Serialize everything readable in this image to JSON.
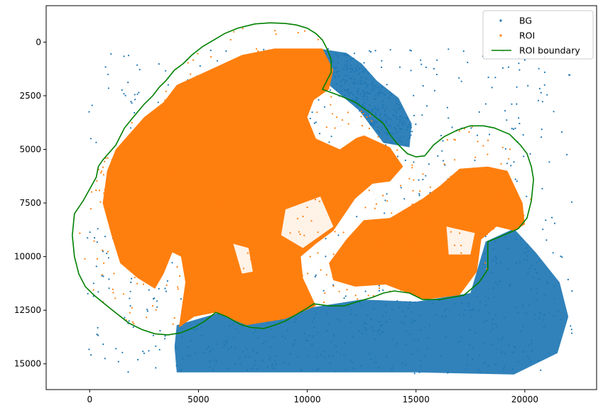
{
  "chart_data": {
    "type": "scatter",
    "xlim": [
      -2000,
      23300
    ],
    "ylim": [
      16200,
      -1700
    ],
    "y_inverted": true,
    "x_ticks": [
      0,
      5000,
      10000,
      15000,
      20000
    ],
    "x_tick_labels": [
      "0",
      "5000",
      "10000",
      "15000",
      "20000"
    ],
    "y_ticks": [
      0,
      2500,
      5000,
      7500,
      10000,
      12500,
      15000
    ],
    "y_tick_labels": [
      "0",
      "2500",
      "5000",
      "7500",
      "10000",
      "12500",
      "15000"
    ],
    "grid": false,
    "legend": {
      "placement": "top-right",
      "entries": [
        {
          "label": "BG",
          "kind": "marker",
          "color": "#1f77b4"
        },
        {
          "label": "ROI",
          "kind": "marker",
          "color": "#ff7f0e"
        },
        {
          "label": "ROI boundary",
          "kind": "line",
          "color": "#008000"
        }
      ]
    },
    "series": [
      {
        "name": "BG",
        "kind": "scatter",
        "color": "#1f77b4",
        "regions": [
          {
            "region": "upper tissue lobe",
            "polygon": [
              [
                10500,
                300
              ],
              [
                11800,
                500
              ],
              [
                12500,
                1000
              ],
              [
                13200,
                1800
              ],
              [
                14200,
                2600
              ],
              [
                14800,
                3800
              ],
              [
                14700,
                4900
              ],
              [
                13500,
                4700
              ],
              [
                12400,
                3200
              ],
              [
                11000,
                2000
              ],
              [
                10500,
                1200
              ]
            ]
          },
          {
            "region": "lower tissue band",
            "polygon": [
              [
                4000,
                13200
              ],
              [
                6000,
                12600
              ],
              [
                8000,
                12900
              ],
              [
                10000,
                12400
              ],
              [
                12500,
                12000
              ],
              [
                15000,
                12100
              ],
              [
                17500,
                11700
              ],
              [
                18200,
                9300
              ],
              [
                19500,
                8700
              ],
              [
                20500,
                9800
              ],
              [
                21600,
                11200
              ],
              [
                22000,
                12800
              ],
              [
                21500,
                14500
              ],
              [
                19500,
                15500
              ],
              [
                15000,
                15400
              ],
              [
                9500,
                15400
              ],
              [
                4000,
                15400
              ],
              [
                3900,
                14200
              ]
            ]
          }
        ],
        "sparse_extent": {
          "x": [
            -100,
            22200
          ],
          "y": [
            300,
            15500
          ]
        }
      },
      {
        "name": "ROI",
        "kind": "scatter",
        "color": "#ff7f0e",
        "regions": [
          {
            "region": "main tissue",
            "polygon": [
              [
                1000,
                9000
              ],
              [
                600,
                7500
              ],
              [
                800,
                6000
              ],
              [
                1200,
                5000
              ],
              [
                2500,
                3500
              ],
              [
                3400,
                2800
              ],
              [
                4000,
                2000
              ],
              [
                5500,
                1300
              ],
              [
                7000,
                600
              ],
              [
                8500,
                300
              ],
              [
                10700,
                300
              ],
              [
                11200,
                1300
              ],
              [
                11000,
                2200
              ],
              [
                10300,
                2700
              ],
              [
                10000,
                3500
              ],
              [
                10400,
                4500
              ],
              [
                11500,
                5000
              ],
              [
                12500,
                4300
              ],
              [
                13800,
                4900
              ],
              [
                14400,
                5800
              ],
              [
                13800,
                6500
              ],
              [
                13000,
                6600
              ],
              [
                12200,
                7300
              ],
              [
                11200,
                8800
              ],
              [
                10400,
                9400
              ],
              [
                9700,
                10000
              ],
              [
                9800,
                11000
              ],
              [
                10400,
                12300
              ],
              [
                9000,
                12900
              ],
              [
                7200,
                13200
              ],
              [
                5800,
                12600
              ],
              [
                4800,
                12800
              ],
              [
                4100,
                13300
              ],
              [
                4400,
                11200
              ],
              [
                4200,
                10000
              ],
              [
                3800,
                9800
              ],
              [
                3400,
                10800
              ],
              [
                3000,
                11500
              ],
              [
                2200,
                11000
              ],
              [
                1400,
                10300
              ]
            ]
          },
          {
            "region": "right lobe",
            "polygon": [
              [
                11000,
                10300
              ],
              [
                11800,
                9200
              ],
              [
                12600,
                8300
              ],
              [
                13800,
                8200
              ],
              [
                15300,
                7300
              ],
              [
                16100,
                6700
              ],
              [
                17000,
                5900
              ],
              [
                18300,
                5800
              ],
              [
                19200,
                6000
              ],
              [
                19900,
                7500
              ],
              [
                20000,
                8500
              ],
              [
                19500,
                8800
              ],
              [
                18700,
                8600
              ],
              [
                18000,
                9200
              ],
              [
                17800,
                10700
              ],
              [
                17000,
                11800
              ],
              [
                15400,
                12000
              ],
              [
                13600,
                11300
              ],
              [
                12200,
                11400
              ],
              [
                11200,
                11100
              ]
            ]
          }
        ]
      },
      {
        "name": "ROI boundary",
        "kind": "line",
        "color": "#008000",
        "points": [
          [
            -800,
            9000
          ],
          [
            -700,
            8000
          ],
          [
            -300,
            7400
          ],
          [
            300,
            6300
          ],
          [
            400,
            5800
          ],
          [
            600,
            5500
          ],
          [
            1200,
            4800
          ],
          [
            1600,
            4000
          ],
          [
            2000,
            3500
          ],
          [
            2500,
            2900
          ],
          [
            2900,
            2500
          ],
          [
            3200,
            2100
          ],
          [
            3500,
            1800
          ],
          [
            3900,
            1300
          ],
          [
            4300,
            1000
          ],
          [
            4700,
            600
          ],
          [
            5200,
            200
          ],
          [
            5700,
            -100
          ],
          [
            6200,
            -400
          ],
          [
            6800,
            -650
          ],
          [
            7200,
            -750
          ],
          [
            7600,
            -850
          ],
          [
            8300,
            -900
          ],
          [
            9000,
            -870
          ],
          [
            9500,
            -800
          ],
          [
            10000,
            -650
          ],
          [
            10400,
            -400
          ],
          [
            10700,
            -100
          ],
          [
            10900,
            300
          ],
          [
            11100,
            800
          ],
          [
            11100,
            1400
          ],
          [
            10700,
            2200
          ],
          [
            11500,
            2500
          ],
          [
            12200,
            2800
          ],
          [
            12900,
            3300
          ],
          [
            13500,
            3800
          ],
          [
            13800,
            4300
          ],
          [
            14100,
            4700
          ],
          [
            14600,
            5200
          ],
          [
            15000,
            5350
          ],
          [
            15400,
            5300
          ],
          [
            15800,
            4800
          ],
          [
            16300,
            4400
          ],
          [
            16900,
            4100
          ],
          [
            17500,
            3900
          ],
          [
            18100,
            3900
          ],
          [
            18600,
            4000
          ],
          [
            19300,
            4300
          ],
          [
            19800,
            4800
          ],
          [
            20100,
            5200
          ],
          [
            20300,
            5800
          ],
          [
            20400,
            6400
          ],
          [
            20300,
            7400
          ],
          [
            20100,
            8200
          ],
          [
            19700,
            8700
          ],
          [
            18800,
            9100
          ],
          [
            18300,
            9300
          ],
          [
            18300,
            10600
          ],
          [
            17900,
            11200
          ],
          [
            17200,
            11800
          ],
          [
            16100,
            12000
          ],
          [
            15300,
            12000
          ],
          [
            14700,
            11700
          ],
          [
            14000,
            11600
          ],
          [
            13500,
            11700
          ],
          [
            13000,
            11900
          ],
          [
            12300,
            12100
          ],
          [
            11700,
            12300
          ],
          [
            11000,
            12300
          ],
          [
            10300,
            12200
          ],
          [
            10000,
            12400
          ],
          [
            9500,
            12700
          ],
          [
            9000,
            13000
          ],
          [
            8500,
            13200
          ],
          [
            8000,
            13350
          ],
          [
            7400,
            13300
          ],
          [
            6900,
            13150
          ],
          [
            6300,
            12800
          ],
          [
            5800,
            12600
          ],
          [
            5300,
            13000
          ],
          [
            4800,
            13300
          ],
          [
            4200,
            13550
          ],
          [
            3600,
            13650
          ],
          [
            3000,
            13600
          ],
          [
            2400,
            13400
          ],
          [
            1800,
            13100
          ],
          [
            1300,
            12700
          ],
          [
            800,
            12300
          ],
          [
            200,
            11800
          ],
          [
            -200,
            11400
          ],
          [
            -500,
            10800
          ],
          [
            -700,
            10000
          ],
          [
            -800,
            9000
          ]
        ]
      }
    ]
  }
}
